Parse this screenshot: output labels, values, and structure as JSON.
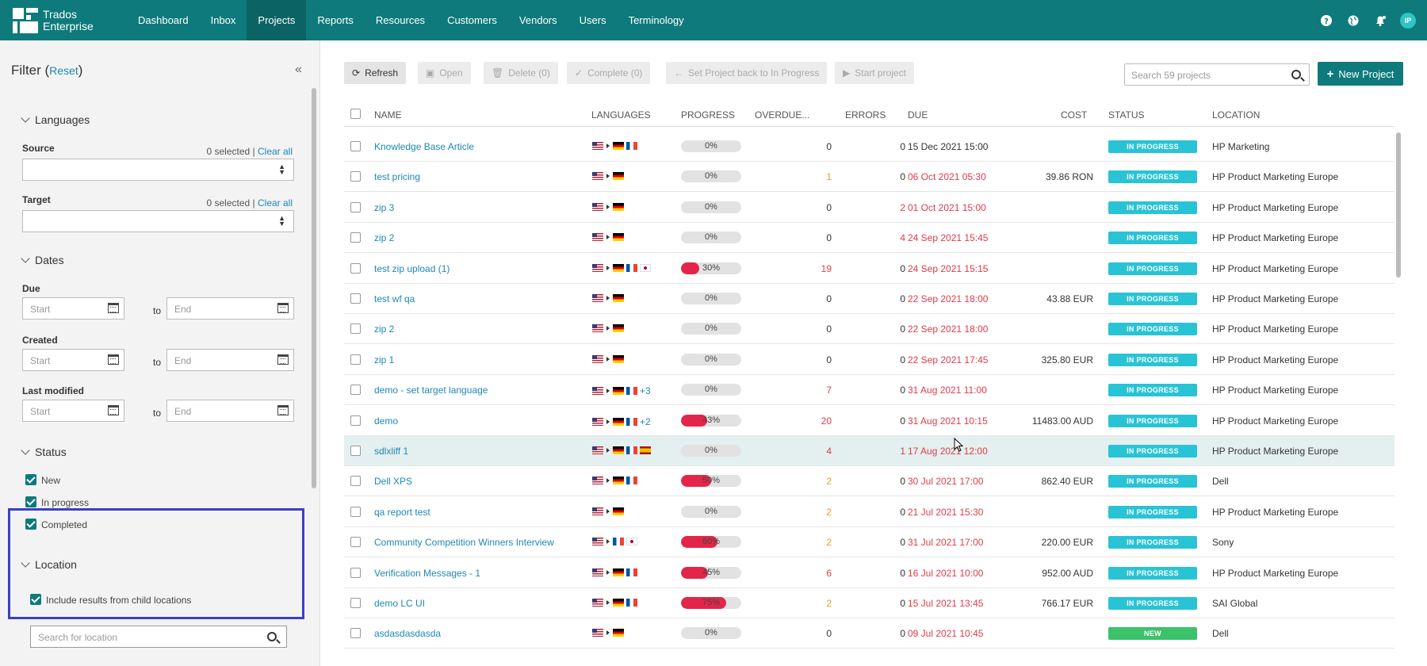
{
  "brand": {
    "line1": "Trados",
    "line2": "Enterprise"
  },
  "nav": [
    "Dashboard",
    "Inbox",
    "Projects",
    "Reports",
    "Resources",
    "Customers",
    "Vendors",
    "Users",
    "Terminology"
  ],
  "active_nav": "Projects",
  "user_initials": "IP",
  "filter": {
    "title": "Filter",
    "reset": "Reset",
    "languages": {
      "heading": "Languages",
      "source_label": "Source",
      "source_count": "0 selected",
      "source_clear": "Clear all",
      "target_label": "Target",
      "target_count": "0 selected",
      "target_clear": "Clear all"
    },
    "dates": {
      "heading": "Dates",
      "due_label": "Due",
      "created_label": "Created",
      "modified_label": "Last modified",
      "start_placeholder": "Start",
      "end_placeholder": "End",
      "to": "to"
    },
    "status": {
      "heading": "Status",
      "options": [
        "New",
        "In progress",
        "Completed"
      ]
    },
    "location": {
      "heading": "Location",
      "include_child": "Include results from child locations",
      "search_placeholder": "Search for location"
    }
  },
  "toolbar": {
    "refresh": "Refresh",
    "open": "Open",
    "delete": "Delete (0)",
    "complete": "Complete (0)",
    "set_back": "Set Project back to In Progress",
    "start": "Start project",
    "search_placeholder": "Search 59 projects",
    "new_project": "New Project"
  },
  "columns": [
    "NAME",
    "LANGUAGES",
    "PROGRESS",
    "OVERDUE...",
    "ERRORS",
    "DUE",
    "COST",
    "STATUS",
    "LOCATION"
  ],
  "colors": {
    "teal": "#0e7a7b",
    "in_progress": "#29c3d6",
    "new": "#3cc26a",
    "red": "#e03b4a",
    "orange": "#e0a020",
    "link": "#1e88b4"
  },
  "projects": [
    {
      "name": "Knowledge Base Article",
      "targets": [
        "de",
        "fr"
      ],
      "more": "",
      "progress": 0,
      "progress_label": "0%",
      "overdue": "0",
      "overdue_color": "normal",
      "errors": "0",
      "errors_color": "normal",
      "due": "15 Dec 2021 15:00",
      "due_red": false,
      "cost": "",
      "status": "IN PROGRESS",
      "location": "HP Marketing"
    },
    {
      "name": "test pricing",
      "targets": [
        "de"
      ],
      "more": "",
      "progress": 0,
      "progress_label": "0%",
      "overdue": "1",
      "overdue_color": "orange",
      "errors": "0",
      "errors_color": "normal",
      "due": "06 Oct 2021 05:30",
      "due_red": true,
      "cost": "39.86 RON",
      "status": "IN PROGRESS",
      "location": "HP Product Marketing Europe"
    },
    {
      "name": "zip 3",
      "targets": [
        "de"
      ],
      "more": "",
      "progress": 0,
      "progress_label": "0%",
      "overdue": "0",
      "overdue_color": "normal",
      "errors": "2",
      "errors_color": "red",
      "due": "01 Oct 2021 15:00",
      "due_red": true,
      "cost": "",
      "status": "IN PROGRESS",
      "location": "HP Product Marketing Europe"
    },
    {
      "name": "zip 2",
      "targets": [
        "de"
      ],
      "more": "",
      "progress": 0,
      "progress_label": "0%",
      "overdue": "0",
      "overdue_color": "normal",
      "errors": "4",
      "errors_color": "red",
      "due": "24 Sep 2021 15:45",
      "due_red": true,
      "cost": "",
      "status": "IN PROGRESS",
      "location": "HP Product Marketing Europe"
    },
    {
      "name": "test zip upload (1)",
      "targets": [
        "de",
        "fr",
        "jp"
      ],
      "more": "",
      "progress": 30,
      "progress_label": "30%",
      "overdue": "19",
      "overdue_color": "red",
      "errors": "0",
      "errors_color": "normal",
      "due": "24 Sep 2021 15:15",
      "due_red": true,
      "cost": "",
      "status": "IN PROGRESS",
      "location": "HP Product Marketing Europe"
    },
    {
      "name": "test wf qa",
      "targets": [
        "de"
      ],
      "more": "",
      "progress": 0,
      "progress_label": "0%",
      "overdue": "0",
      "overdue_color": "normal",
      "errors": "0",
      "errors_color": "normal",
      "due": "22 Sep 2021 18:00",
      "due_red": true,
      "cost": "43.88 EUR",
      "status": "IN PROGRESS",
      "location": "HP Product Marketing Europe"
    },
    {
      "name": "zip 2",
      "targets": [
        "de"
      ],
      "more": "",
      "progress": 0,
      "progress_label": "0%",
      "overdue": "0",
      "overdue_color": "normal",
      "errors": "0",
      "errors_color": "normal",
      "due": "22 Sep 2021 18:00",
      "due_red": true,
      "cost": "",
      "status": "IN PROGRESS",
      "location": "HP Product Marketing Europe"
    },
    {
      "name": "zip 1",
      "targets": [
        "de"
      ],
      "more": "",
      "progress": 0,
      "progress_label": "0%",
      "overdue": "0",
      "overdue_color": "normal",
      "errors": "0",
      "errors_color": "normal",
      "due": "22 Sep 2021 17:45",
      "due_red": true,
      "cost": "325.80 EUR",
      "status": "IN PROGRESS",
      "location": "HP Product Marketing Europe"
    },
    {
      "name": "demo - set target language",
      "targets": [
        "de",
        "fr"
      ],
      "more": "+3",
      "progress": 0,
      "progress_label": "0%",
      "overdue": "7",
      "overdue_color": "red",
      "errors": "0",
      "errors_color": "normal",
      "due": "31 Aug 2021 11:00",
      "due_red": true,
      "cost": "",
      "status": "IN PROGRESS",
      "location": "HP Product Marketing Europe"
    },
    {
      "name": "demo",
      "targets": [
        "de",
        "fr"
      ],
      "more": "+2",
      "progress": 43,
      "progress_label": "43%",
      "overdue": "20",
      "overdue_color": "red",
      "errors": "0",
      "errors_color": "normal",
      "due": "31 Aug 2021 10:15",
      "due_red": true,
      "cost": "11483.00 AUD",
      "status": "IN PROGRESS",
      "location": "HP Product Marketing Europe"
    },
    {
      "name": "sdlxliff 1",
      "targets": [
        "de",
        "fr",
        "es"
      ],
      "more": "",
      "progress": 0,
      "progress_label": "0%",
      "overdue": "4",
      "overdue_color": "red",
      "errors": "1",
      "errors_color": "red",
      "due": "17 Aug 2021 12:00",
      "due_red": true,
      "cost": "",
      "status": "IN PROGRESS",
      "location": "HP Product Marketing Europe",
      "highlight": true
    },
    {
      "name": "Dell XPS",
      "targets": [
        "de",
        "fr"
      ],
      "more": "",
      "progress": 50,
      "progress_label": "50%",
      "overdue": "2",
      "overdue_color": "orange",
      "errors": "0",
      "errors_color": "normal",
      "due": "30 Jul 2021 17:00",
      "due_red": true,
      "cost": "862.40 EUR",
      "status": "IN PROGRESS",
      "location": "Dell"
    },
    {
      "name": "qa report test",
      "targets": [
        "de"
      ],
      "more": "",
      "progress": 0,
      "progress_label": "0%",
      "overdue": "2",
      "overdue_color": "orange",
      "errors": "0",
      "errors_color": "normal",
      "due": "21 Jul 2021 15:30",
      "due_red": true,
      "cost": "",
      "status": "IN PROGRESS",
      "location": "HP Product Marketing Europe"
    },
    {
      "name": "Community Competition Winners Interview",
      "targets": [
        "fr",
        "jp"
      ],
      "more": "",
      "progress": 60,
      "progress_label": "60%",
      "overdue": "2",
      "overdue_color": "orange",
      "errors": "0",
      "errors_color": "normal",
      "due": "31 Jul 2021 17:00",
      "due_red": true,
      "cost": "220.00 EUR",
      "status": "IN PROGRESS",
      "location": "Sony"
    },
    {
      "name": "Verification Messages - 1",
      "targets": [
        "de",
        "fr"
      ],
      "more": "",
      "progress": 45,
      "progress_label": "45%",
      "overdue": "6",
      "overdue_color": "red",
      "errors": "0",
      "errors_color": "normal",
      "due": "16 Jul 2021 10:00",
      "due_red": true,
      "cost": "952.00 AUD",
      "status": "IN PROGRESS",
      "location": "HP Product Marketing Europe"
    },
    {
      "name": "demo LC UI",
      "targets": [
        "de",
        "fr"
      ],
      "more": "",
      "progress": 75,
      "progress_label": "75%",
      "overdue": "2",
      "overdue_color": "orange",
      "errors": "0",
      "errors_color": "normal",
      "due": "15 Jul 2021 13:45",
      "due_red": true,
      "cost": "766.17 EUR",
      "status": "IN PROGRESS",
      "location": "SAI Global"
    },
    {
      "name": "asdasdasdasda",
      "targets": [
        "de"
      ],
      "more": "",
      "progress": 0,
      "progress_label": "0%",
      "overdue": "0",
      "overdue_color": "normal",
      "errors": "0",
      "errors_color": "normal",
      "due": "09 Jul 2021 10:45",
      "due_red": true,
      "cost": "",
      "status": "NEW",
      "location": "Dell"
    }
  ]
}
